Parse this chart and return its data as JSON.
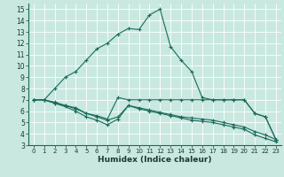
{
  "xlabel": "Humidex (Indice chaleur)",
  "bg_color": "#c8e8e0",
  "line_color": "#1a6b5a",
  "grid_color": "#ffffff",
  "xlim": [
    -0.5,
    23.5
  ],
  "ylim": [
    3,
    15.5
  ],
  "xticks": [
    0,
    1,
    2,
    3,
    4,
    5,
    6,
    7,
    8,
    9,
    10,
    11,
    12,
    13,
    14,
    15,
    16,
    17,
    18,
    19,
    20,
    21,
    22,
    23
  ],
  "yticks": [
    3,
    4,
    5,
    6,
    7,
    8,
    9,
    10,
    11,
    12,
    13,
    14,
    15
  ],
  "lines": [
    {
      "x": [
        0,
        1,
        2,
        3,
        4,
        5,
        6,
        7,
        8,
        9,
        10,
        11,
        12,
        13,
        14,
        15,
        16,
        17,
        18,
        19,
        20,
        21,
        22,
        23
      ],
      "y": [
        7,
        7,
        8,
        9,
        9.5,
        10.5,
        11.5,
        12,
        12.8,
        13.3,
        13.2,
        14.5,
        15,
        11.7,
        10.5,
        9.5,
        7.2,
        7,
        7,
        7,
        7,
        5.8,
        5.5,
        3.5
      ]
    },
    {
      "x": [
        0,
        1,
        2,
        3,
        4,
        5,
        6,
        7,
        8,
        9,
        10,
        11,
        12,
        13,
        14,
        15,
        16,
        17,
        18,
        19,
        20,
        21,
        22,
        23
      ],
      "y": [
        7,
        7,
        6.7,
        6.5,
        6.3,
        5.8,
        5.6,
        5.3,
        7.2,
        7,
        7,
        7,
        7,
        7,
        7,
        7,
        7,
        7,
        7,
        7,
        7,
        5.8,
        5.5,
        3.5
      ]
    },
    {
      "x": [
        0,
        1,
        2,
        3,
        4,
        5,
        6,
        7,
        8,
        9,
        10,
        11,
        12,
        13,
        14,
        15,
        16,
        17,
        18,
        19,
        20,
        21,
        22,
        23
      ],
      "y": [
        7,
        7,
        6.8,
        6.5,
        6.2,
        5.8,
        5.5,
        5.2,
        5.5,
        6.5,
        6.3,
        6.1,
        5.9,
        5.7,
        5.5,
        5.4,
        5.3,
        5.2,
        5.0,
        4.8,
        4.6,
        4.2,
        3.9,
        3.5
      ]
    },
    {
      "x": [
        0,
        1,
        2,
        3,
        4,
        5,
        6,
        7,
        8,
        9,
        10,
        11,
        12,
        13,
        14,
        15,
        16,
        17,
        18,
        19,
        20,
        21,
        22,
        23
      ],
      "y": [
        7,
        7,
        6.7,
        6.4,
        6.0,
        5.5,
        5.2,
        4.8,
        5.3,
        6.5,
        6.2,
        6.0,
        5.8,
        5.6,
        5.4,
        5.2,
        5.1,
        5.0,
        4.8,
        4.6,
        4.4,
        3.9,
        3.6,
        3.3
      ]
    }
  ]
}
